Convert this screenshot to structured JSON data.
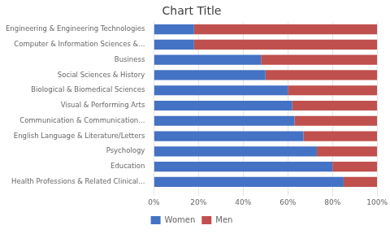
{
  "chart_data": {
    "type": "bar",
    "orientation": "horizontal",
    "stacked": true,
    "title": "Chart Title",
    "categories": [
      "Engineering & Engineering Technologies",
      "Computer & Information Sciences &...",
      "Business",
      "Social Sciences & History",
      "Biological & Biomedical Sciences",
      "Visual & Performing Arts",
      "Communication & Communication...",
      "English Language & Literature/Letters",
      "Psychology",
      "Education",
      "Health Professions & Related Clinical..."
    ],
    "series": [
      {
        "name": "Women",
        "color": "#4472C4",
        "values": [
          18,
          18,
          48,
          50,
          60,
          62,
          63,
          67,
          73,
          80,
          85
        ]
      },
      {
        "name": "Men",
        "color": "#C0504D",
        "values": [
          82,
          82,
          52,
          50,
          40,
          38,
          37,
          33,
          27,
          20,
          15
        ]
      }
    ],
    "xlim": [
      0,
      100
    ],
    "xticks": [
      {
        "value": 0,
        "label": "0%"
      },
      {
        "value": 20,
        "label": "20%"
      },
      {
        "value": 40,
        "label": "40%"
      },
      {
        "value": 60,
        "label": "60%"
      },
      {
        "value": 80,
        "label": "80%"
      },
      {
        "value": 100,
        "label": "100%"
      }
    ],
    "grid": true,
    "legend": "bottom"
  }
}
